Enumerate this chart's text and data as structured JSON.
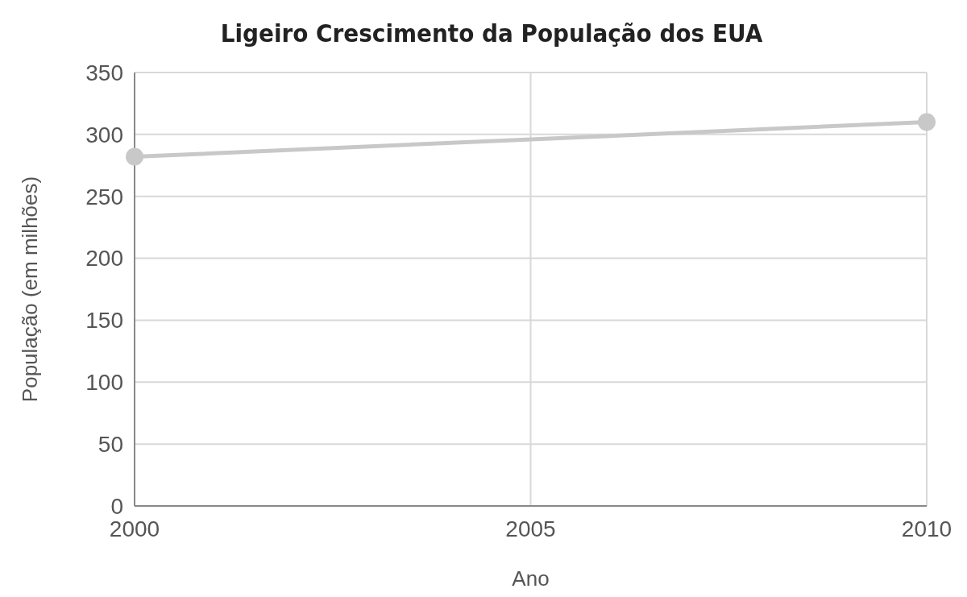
{
  "chart_data": {
    "type": "line",
    "title": "Ligeiro Crescimento da População dos EUA",
    "xlabel": "Ano",
    "ylabel": "População (em milhões)",
    "x": [
      2000,
      2010
    ],
    "series": [
      {
        "color": "#c8c8c8",
        "values": [
          282,
          310
        ]
      }
    ],
    "xlim": [
      2000,
      2010
    ],
    "xticks": [
      2000,
      2005,
      2010
    ],
    "ylim": [
      0,
      350
    ],
    "yticks": [
      0,
      50,
      100,
      150,
      200,
      250,
      300,
      350
    ],
    "grid": true,
    "marker": "circle",
    "line_style": "solid"
  }
}
